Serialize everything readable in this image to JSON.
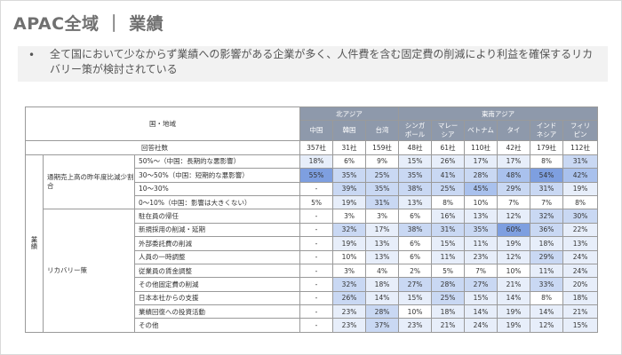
{
  "title": "APAC全域 ｜ 業績",
  "bullet": {
    "dot": "•",
    "text": "全て国において少なからず業績への影響がある企業が多く、人件費を含む固定費の削減により利益を確保するリカバリー策が検討されている"
  },
  "table": {
    "header_label": "国・地域",
    "count_label": "回答社数",
    "side_label": "業績",
    "regions": [
      {
        "name": "北アジア",
        "span": 3
      },
      {
        "name": "東南アジア",
        "span": 6
      }
    ],
    "countries": [
      "中国",
      "韓国",
      "台湾",
      "シンガポール",
      "マレーシア",
      "ベトナム",
      "タイ",
      "インドネシア",
      "フィリピン"
    ],
    "country_lines": [
      [
        "中国"
      ],
      [
        "韓国"
      ],
      [
        "台湾"
      ],
      [
        "シンガ",
        "ポール"
      ],
      [
        "マレー",
        "シア"
      ],
      [
        "ベトナム"
      ],
      [
        "タイ"
      ],
      [
        "インド",
        "ネシア"
      ],
      [
        "フィリ",
        "ピン"
      ]
    ],
    "counts": [
      "357社",
      "31社",
      "159社",
      "48社",
      "61社",
      "110社",
      "42社",
      "179社",
      "112社"
    ],
    "sections": [
      {
        "label": "通期売上高の昨年度比減少割合",
        "rows": [
          {
            "label": "50%～（中国：長期的な悪影響）",
            "values": [
              "18%",
              "6%",
              "9%",
              "15%",
              "26%",
              "17%",
              "17%",
              "8%",
              "31%"
            ],
            "shades": [
              1,
              0,
              0,
              1,
              1,
              1,
              1,
              0,
              2
            ]
          },
          {
            "label": "30～50%（中国：短期的な悪影響）",
            "values": [
              "55%",
              "35%",
              "25%",
              "35%",
              "41%",
              "28%",
              "48%",
              "54%",
              "42%"
            ],
            "shades": [
              4,
              2,
              2,
              2,
              2,
              2,
              3,
              4,
              3
            ]
          },
          {
            "label": "10～30%",
            "values": [
              "-",
              "39%",
              "35%",
              "38%",
              "25%",
              "45%",
              "29%",
              "31%",
              "19%"
            ],
            "shades": [
              -1,
              2,
              2,
              2,
              2,
              3,
              2,
              2,
              1
            ]
          },
          {
            "label": "0～10%（中国：影響は大きくない）",
            "values": [
              "5%",
              "19%",
              "31%",
              "13%",
              "8%",
              "10%",
              "7%",
              "7%",
              "8%"
            ],
            "shades": [
              0,
              1,
              2,
              1,
              0,
              0,
              0,
              0,
              0
            ]
          }
        ]
      },
      {
        "label": "リカバリー策",
        "rows": [
          {
            "label": "駐在員の帰任",
            "values": [
              "-",
              "3%",
              "3%",
              "6%",
              "16%",
              "13%",
              "12%",
              "32%",
              "30%"
            ],
            "shades": [
              -1,
              0,
              0,
              0,
              1,
              1,
              1,
              2,
              2
            ]
          },
          {
            "label": "新規採用の削減・延期",
            "values": [
              "-",
              "32%",
              "17%",
              "38%",
              "31%",
              "35%",
              "60%",
              "36%",
              "22%"
            ],
            "shades": [
              -1,
              2,
              1,
              2,
              2,
              2,
              4,
              2,
              1
            ]
          },
          {
            "label": "外部委託費の削減",
            "values": [
              "-",
              "19%",
              "13%",
              "6%",
              "15%",
              "11%",
              "19%",
              "18%",
              "13%"
            ],
            "shades": [
              -1,
              1,
              1,
              0,
              1,
              1,
              1,
              1,
              1
            ]
          },
          {
            "label": "人員の一時調整",
            "values": [
              "-",
              "10%",
              "13%",
              "6%",
              "11%",
              "23%",
              "12%",
              "29%",
              "24%"
            ],
            "shades": [
              -1,
              0,
              1,
              0,
              1,
              1,
              1,
              2,
              1
            ]
          },
          {
            "label": "従業員の賃金調整",
            "values": [
              "-",
              "3%",
              "4%",
              "2%",
              "5%",
              "7%",
              "10%",
              "11%",
              "24%"
            ],
            "shades": [
              -1,
              0,
              0,
              0,
              0,
              0,
              0,
              1,
              1
            ]
          },
          {
            "label": "その他固定費の削減",
            "values": [
              "-",
              "32%",
              "18%",
              "27%",
              "28%",
              "27%",
              "21%",
              "33%",
              "20%"
            ],
            "shades": [
              -1,
              2,
              1,
              2,
              2,
              2,
              1,
              2,
              1
            ]
          },
          {
            "label": "日本本社からの支援",
            "values": [
              "-",
              "26%",
              "14%",
              "15%",
              "25%",
              "15%",
              "14%",
              "8%",
              "18%"
            ],
            "shades": [
              -1,
              2,
              1,
              1,
              2,
              1,
              1,
              0,
              1
            ]
          },
          {
            "label": "業績回復への投資活動",
            "values": [
              "-",
              "23%",
              "28%",
              "10%",
              "18%",
              "14%",
              "19%",
              "14%",
              "21%"
            ],
            "shades": [
              -1,
              1,
              2,
              0,
              1,
              1,
              1,
              1,
              1
            ]
          },
          {
            "label": "その他",
            "values": [
              "-",
              "23%",
              "37%",
              "23%",
              "21%",
              "24%",
              "19%",
              "12%",
              "15%"
            ],
            "shades": [
              -1,
              1,
              2,
              1,
              1,
              1,
              1,
              1,
              1
            ]
          }
        ]
      }
    ]
  }
}
